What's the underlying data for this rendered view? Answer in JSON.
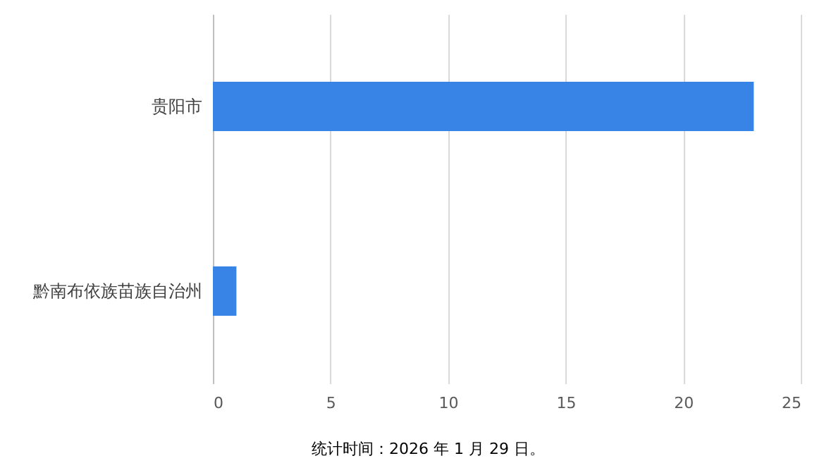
{
  "chart_data": {
    "type": "bar",
    "orientation": "horizontal",
    "categories": [
      "贵阳市",
      "黔南布依族苗族自治州"
    ],
    "values": [
      23,
      1
    ],
    "color": "#3884e6",
    "xlim": [
      0,
      25
    ],
    "xticks": [
      0,
      5,
      10,
      15,
      20,
      25
    ],
    "grid": "x",
    "annotations": [
      "统计时间：2026 年 1 月 29 日。"
    ]
  }
}
